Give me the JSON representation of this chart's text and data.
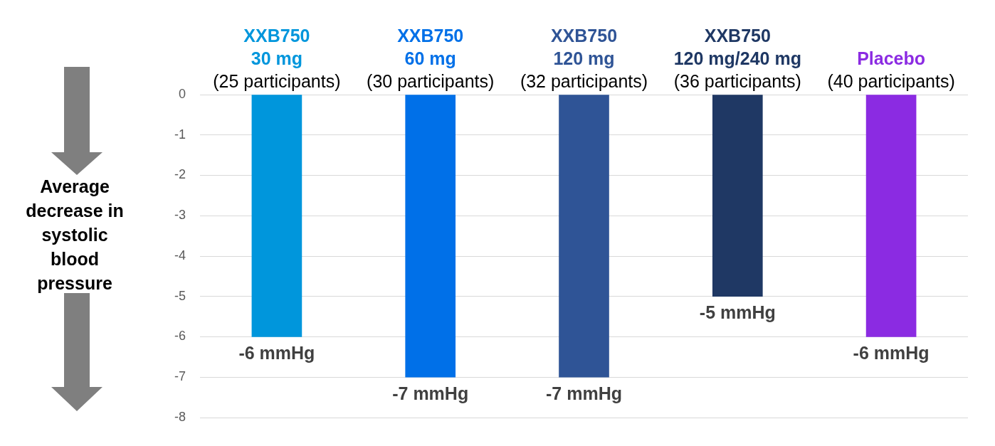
{
  "chart_data": {
    "type": "bar",
    "ylabel": "Average decrease in systolic blood pressure",
    "categories": [
      "XXB750\n30 mg\n(25 participants)",
      "XXB750\n60 mg\n(30 participants)",
      "XXB750\n120 mg\n(32 participants)",
      "XXB750\n120 mg/240 mg\n(36 participants)",
      "Placebo\n(40 participants)"
    ],
    "values": [
      -6,
      -7,
      -7,
      -5,
      -6
    ],
    "colors": [
      "#0096dc",
      "#0070e8",
      "#2f5496",
      "#1f3864",
      "#8b2be2"
    ],
    "value_labels": [
      "-6 mmHg",
      "-7 mmHg",
      "-7 mmHg",
      "-5 mmHg",
      "-6 mmHg"
    ],
    "ylim": [
      -8,
      0
    ],
    "yticks": [
      0,
      -1,
      -2,
      -3,
      -4,
      -5,
      -6,
      -7,
      -8
    ],
    "grid": "y",
    "legend": false
  }
}
